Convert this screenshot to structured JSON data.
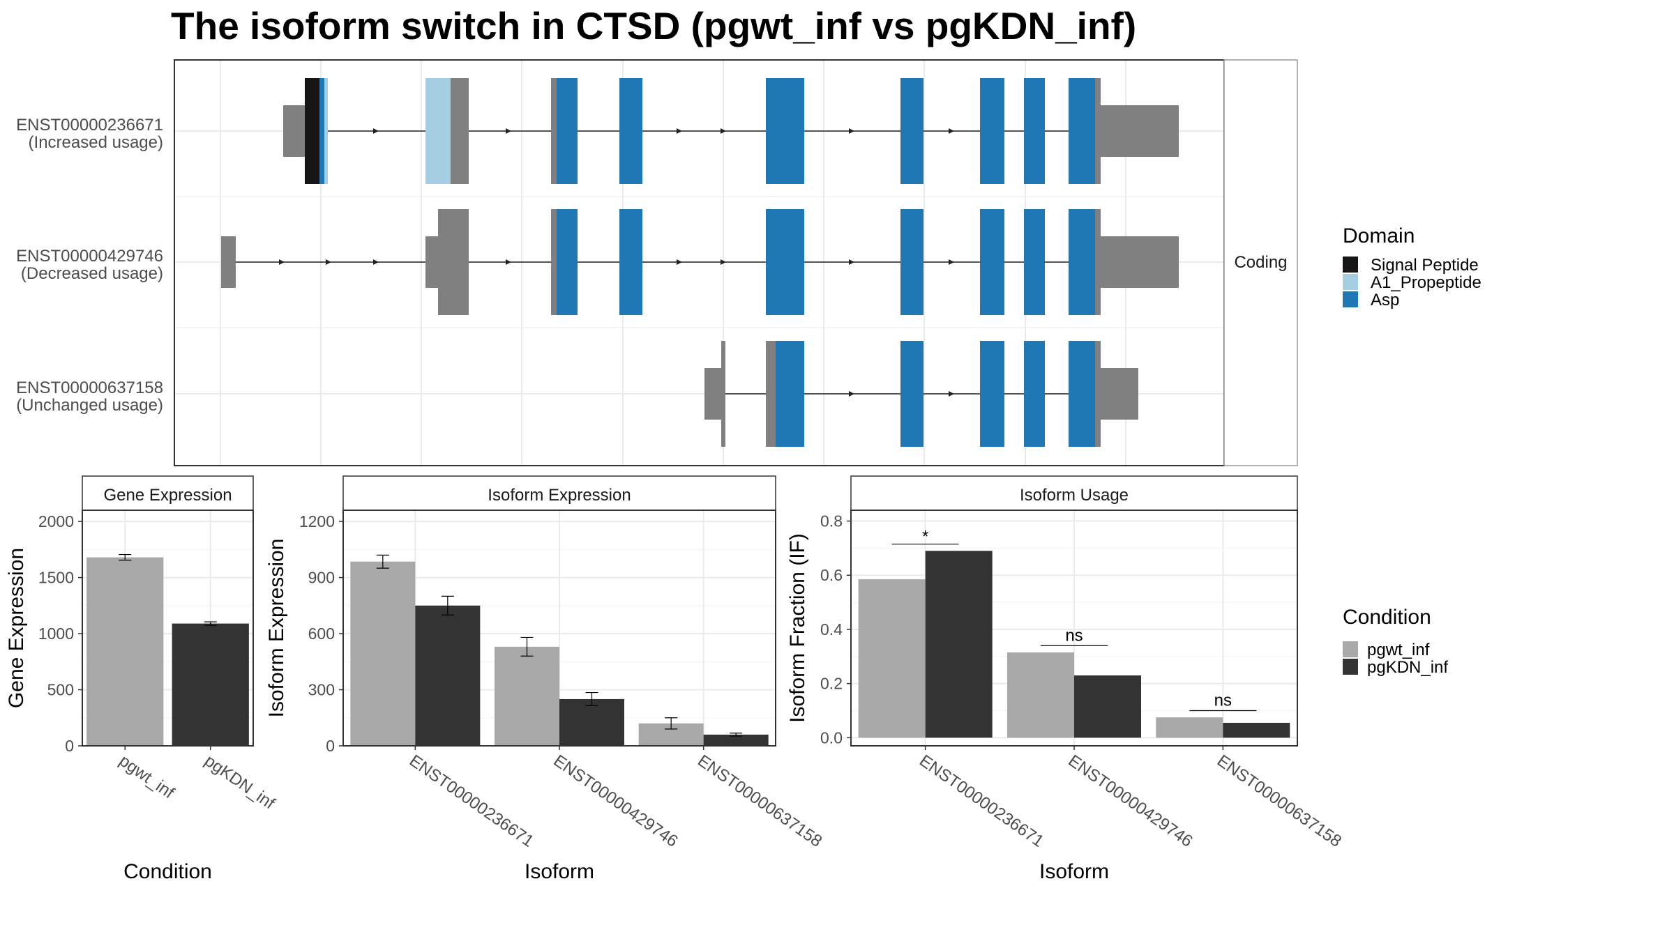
{
  "title": "The isoform switch in CTSD (pgwt_inf vs pgKDN_inf)",
  "colors": {
    "signal_peptide": "#161616",
    "a1_propeptide": "#a6cee3",
    "asp": "#1f78b4",
    "utr": "#808080",
    "pgwt_inf": "#a8a8a8",
    "pgKDN_inf": "#333333",
    "grid": "#ebebeb",
    "panel_border": "#333333",
    "strip_border": "#999999"
  },
  "domain_legend": {
    "title": "Domain",
    "items": [
      {
        "label": "Signal Peptide",
        "color": "#161616"
      },
      {
        "label": "A1_Propeptide",
        "color": "#a6cee3"
      },
      {
        "label": "Asp",
        "color": "#1f78b4"
      }
    ]
  },
  "condition_legend": {
    "title": "Condition",
    "items": [
      {
        "label": "pgwt_inf",
        "color": "#a8a8a8"
      },
      {
        "label": "pgKDN_inf",
        "color": "#333333"
      }
    ]
  },
  "chart_data": [
    {
      "type": "gene_structure",
      "strip_label": "Coding",
      "isoforms": [
        {
          "id": "ENST00000236671",
          "usage": "(Increased usage)"
        },
        {
          "id": "ENST00000429746",
          "usage": "(Decreased usage)"
        },
        {
          "id": "ENST00000637158",
          "usage": "(Unchanged usage)"
        }
      ]
    },
    {
      "type": "bar",
      "panel_title": "Gene Expression",
      "xlabel": "Condition",
      "ylabel": "Gene Expression",
      "categories": [
        "pgwt_inf",
        "pgKDN_inf"
      ],
      "values": [
        1680,
        1090
      ],
      "errors": [
        25,
        15
      ],
      "ylim": [
        0,
        2100
      ],
      "yticks": [
        0,
        500,
        1000,
        1500,
        2000
      ],
      "ytick_labels": [
        "0",
        "500",
        "1000",
        "1500",
        "2000"
      ]
    },
    {
      "type": "bar",
      "panel_title": "Isoform Expression",
      "xlabel": "Isoform",
      "ylabel": "Isoform Expression",
      "categories": [
        "ENST00000236671",
        "ENST00000429746",
        "ENST00000637158"
      ],
      "series": [
        {
          "name": "pgwt_inf",
          "values": [
            985,
            530,
            120
          ],
          "errors": [
            35,
            50,
            30
          ]
        },
        {
          "name": "pgKDN_inf",
          "values": [
            750,
            250,
            60
          ],
          "errors": [
            50,
            35,
            8
          ]
        }
      ],
      "ylim": [
        0,
        1260
      ],
      "yticks": [
        0,
        300,
        600,
        900,
        1200
      ],
      "ytick_labels": [
        "0",
        "300",
        "600",
        "900",
        "1200"
      ]
    },
    {
      "type": "bar",
      "panel_title": "Isoform Usage",
      "xlabel": "Isoform",
      "ylabel": "Isoform Fraction (IF)",
      "categories": [
        "ENST00000236671",
        "ENST00000429746",
        "ENST00000637158"
      ],
      "series": [
        {
          "name": "pgwt_inf",
          "values": [
            0.585,
            0.315,
            0.075
          ]
        },
        {
          "name": "pgKDN_inf",
          "values": [
            0.69,
            0.23,
            0.055
          ]
        }
      ],
      "significance": [
        "*",
        "ns",
        "ns"
      ],
      "ylim": [
        -0.03,
        0.84
      ],
      "yticks": [
        0.0,
        0.2,
        0.4,
        0.6,
        0.8
      ],
      "ytick_labels": [
        "0.0",
        "0.2",
        "0.4",
        "0.6",
        "0.8"
      ]
    }
  ]
}
